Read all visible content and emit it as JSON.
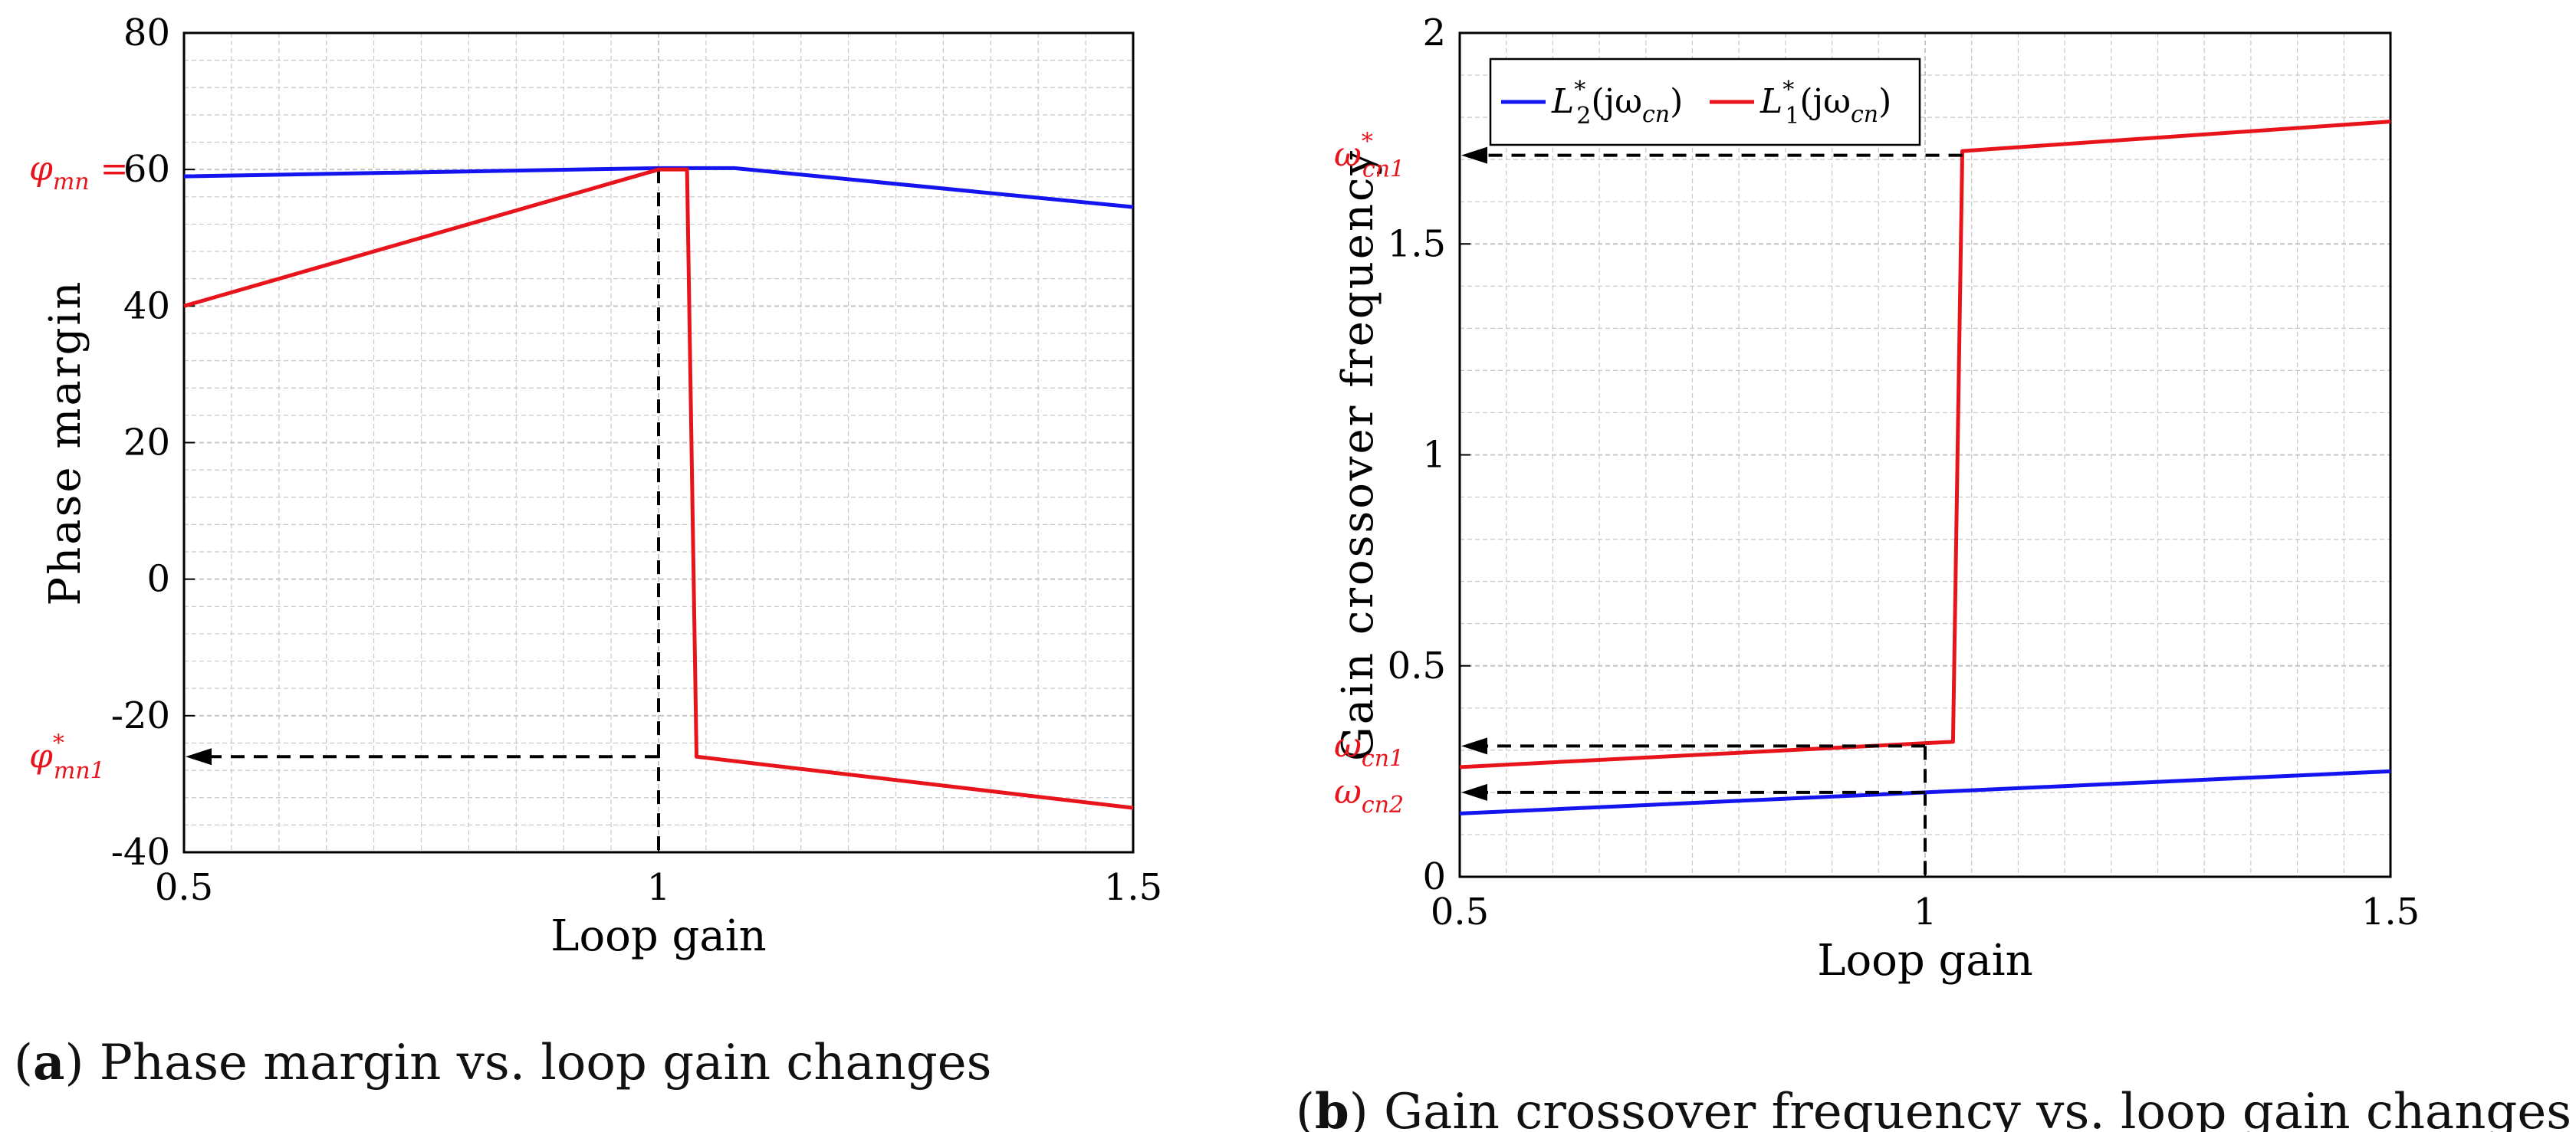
{
  "colors": {
    "series_blue": "#1414f0",
    "series_red": "#e8141b",
    "annotation_red": "#e8141b",
    "grid": "#c8c8c8",
    "frame": "#000000"
  },
  "chart_data": [
    {
      "type": "line",
      "id": "a",
      "xlabel": "Loop gain",
      "ylabel": "Phase margin",
      "xlim": [
        0.5,
        1.5
      ],
      "ylim": [
        -40,
        80
      ],
      "xticks": [
        0.5,
        1,
        1.5
      ],
      "xtick_labels": [
        "0.5",
        "1",
        "1.5"
      ],
      "yticks": [
        -40,
        -20,
        0,
        20,
        40,
        60,
        80
      ],
      "ytick_labels": [
        "-40",
        "-20",
        "0",
        "20",
        "40",
        "60",
        "80"
      ],
      "grid": true,
      "series": [
        {
          "color": "blue",
          "x": [
            0.5,
            1.0,
            1.08,
            1.5
          ],
          "y": [
            59,
            60.2,
            60.2,
            54.5
          ]
        },
        {
          "color": "red",
          "x": [
            0.5,
            1.0,
            1.03,
            1.04,
            1.5
          ],
          "y": [
            40,
            60,
            60,
            -26,
            -33.5
          ]
        }
      ],
      "annotations": [
        {
          "base": "φ",
          "sub": "mn",
          "sup": "",
          "suffix": " =",
          "y": 60
        },
        {
          "base": "φ",
          "sub": "mn1",
          "sup": "*",
          "suffix": "",
          "y": -26,
          "arrow_from_x": 1.0
        }
      ],
      "guides": {
        "vertical_x": 1.0
      },
      "caption": {
        "letter": "a",
        "text": " Phase margin vs. loop gain changes"
      }
    },
    {
      "type": "line",
      "id": "b",
      "xlabel": "Loop gain",
      "ylabel": "Gain crossover frequency",
      "xlim": [
        0.5,
        1.5
      ],
      "ylim": [
        0,
        2
      ],
      "xticks": [
        0.5,
        1,
        1.5
      ],
      "xtick_labels": [
        "0.5",
        "1",
        "1.5"
      ],
      "yticks": [
        0,
        0.5,
        1,
        1.5,
        2
      ],
      "ytick_labels": [
        "0",
        "0.5",
        "1",
        "1.5",
        "2"
      ],
      "grid": true,
      "legend_position": "top-left",
      "legend": [
        {
          "color": "blue",
          "base": "L",
          "sub": "2",
          "sup": "*",
          "arg": "(jω",
          "argsub": "cn",
          "close": ")"
        },
        {
          "color": "red",
          "base": "L",
          "sub": "1",
          "sup": "*",
          "arg": "(jω",
          "argsub": "cn",
          "close": ")"
        }
      ],
      "series": [
        {
          "color": "blue",
          "x": [
            0.5,
            1.5
          ],
          "y": [
            0.15,
            0.25
          ]
        },
        {
          "color": "red",
          "x": [
            0.5,
            1.03,
            1.04,
            1.5
          ],
          "y": [
            0.26,
            0.32,
            1.72,
            1.79
          ]
        }
      ],
      "annotations": [
        {
          "base": "ω",
          "sub": "cn1",
          "sup": "*",
          "y": 1.71,
          "arrow_from_x": 1.04
        },
        {
          "base": "ω",
          "sub": "cn1",
          "sup": "",
          "y": 0.31,
          "arrow_from_x": 1.0
        },
        {
          "base": "ω",
          "sub": "cn2",
          "sup": "",
          "y": 0.2,
          "arrow_from_x": 1.0
        }
      ],
      "guides": {
        "vertical_x": 1.0,
        "vertical_to_y": 0.31
      },
      "caption": {
        "letter": "b",
        "text": " Gain crossover frequency vs. loop gain changes"
      }
    }
  ]
}
